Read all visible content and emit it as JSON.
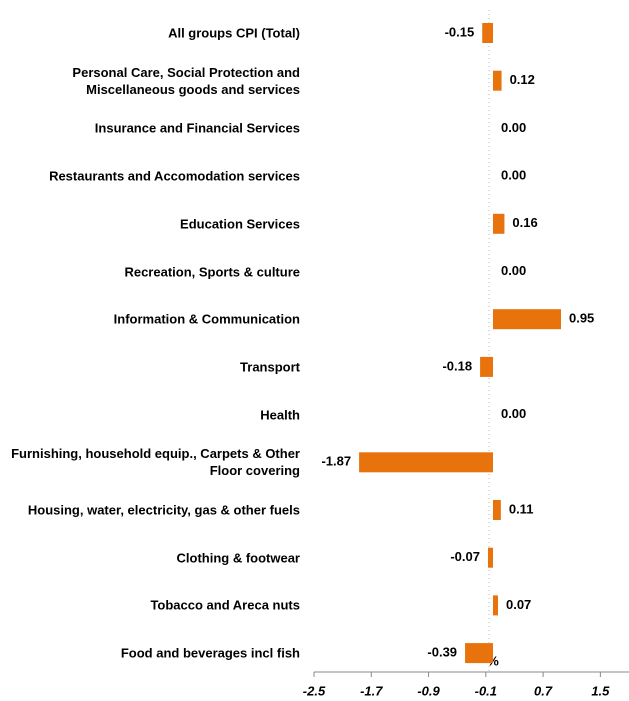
{
  "chart_data": {
    "type": "barh",
    "x_label": "%",
    "categories": [
      "All groups CPI (Total)",
      "Personal Care, Social Protection and Miscellaneous goods and services",
      "Insurance and Financial Services",
      "Restaurants and Accomodation services",
      "Education Services",
      "Recreation, Sports & culture",
      "Information & Communication",
      "Transport",
      "Health",
      "Furnishing, household equip., Carpets & Other Floor covering",
      "Housing, water, electricity, gas & other fuels",
      "Clothing & footwear",
      "Tobacco and Areca nuts",
      "Food and  beverages incl fish"
    ],
    "values": [
      -0.15,
      0.12,
      0,
      0,
      0.16,
      0,
      0.95,
      -0.18,
      0,
      -1.87,
      0.11,
      -0.07,
      0.07,
      -0.39
    ],
    "value_labels": [
      "-0.15",
      "0.12",
      "0.00",
      "0.00",
      "0.16",
      "0.00",
      "0.95",
      "-0.18",
      "0.00",
      "-1.87",
      "0.11",
      "-0.07",
      "0.07",
      "-0.39"
    ],
    "color": "#e8720c",
    "xlim": [
      -2.5,
      1.9
    ],
    "xticks": [
      -2.5,
      -1.7,
      -0.9,
      -0.1,
      0.7,
      1.5
    ]
  }
}
